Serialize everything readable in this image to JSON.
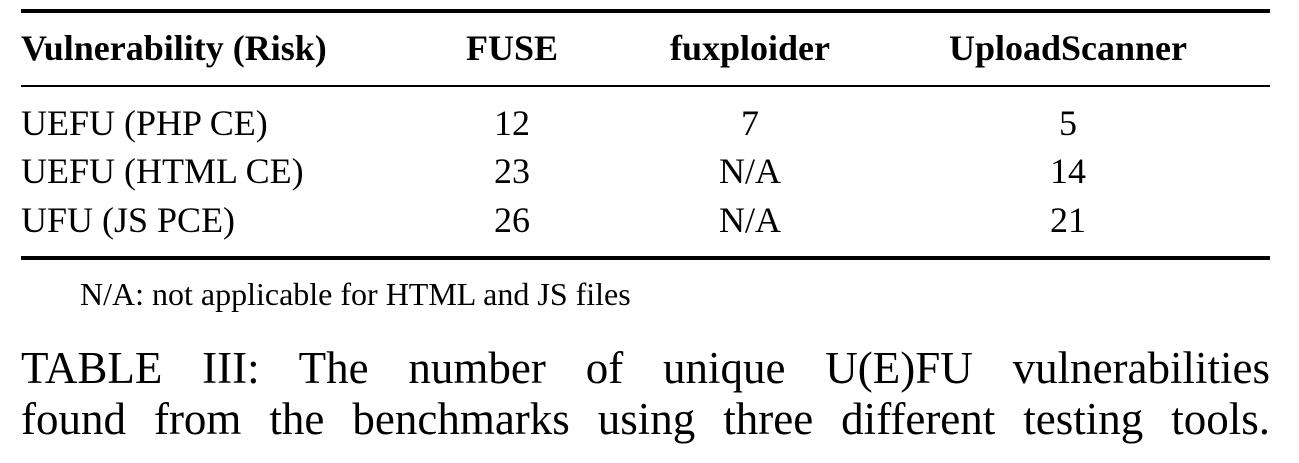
{
  "table": {
    "headers": [
      "Vulnerability (Risk)",
      "FUSE",
      "fuxploider",
      "UploadScanner"
    ],
    "rows": [
      [
        "UEFU (PHP CE)",
        "12",
        "7",
        "5"
      ],
      [
        "UEFU (HTML CE)",
        "23",
        "N/A",
        "14"
      ],
      [
        "UFU (JS PCE)",
        "26",
        "N/A",
        "21"
      ]
    ]
  },
  "note": "N/A: not applicable for HTML and JS files",
  "caption": {
    "line1": "TABLE III: The number of unique U(E)FU vulnerabilities",
    "line2": "found from the benchmarks using three different testing tools."
  }
}
